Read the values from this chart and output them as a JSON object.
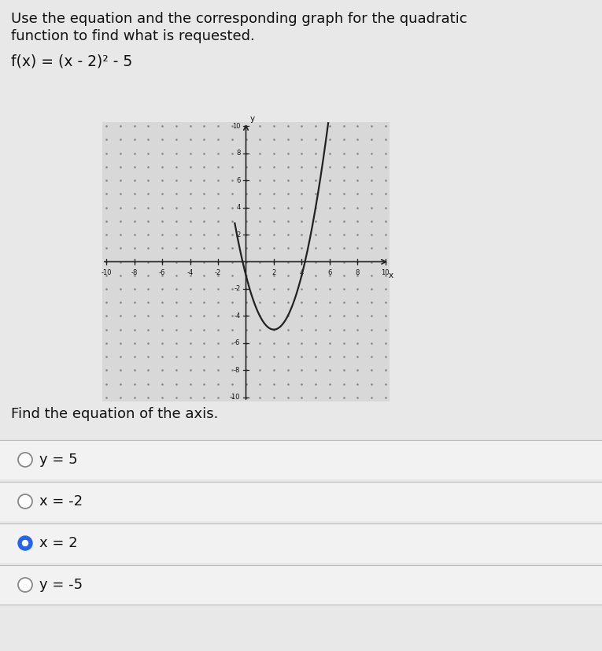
{
  "header_line1": "Use the equation and the corresponding graph for the quadratic",
  "header_line2": "function to find what is requested.",
  "equation_label": "f(x) = (x - 2)² - 5",
  "question": "Find the equation of the axis.",
  "choices": [
    "y = 5",
    "x = -2",
    "x = 2",
    "y = -5"
  ],
  "correct_index": 2,
  "background_color": "#e8e8e8",
  "graph_bg": "#d8d8d8",
  "dot_color": "#888888",
  "curve_color": "#222222",
  "axis_color": "#222222",
  "xmin": -10,
  "xmax": 10,
  "ymin": -10,
  "ymax": 10,
  "xticks": [
    -10,
    -8,
    -6,
    -4,
    -2,
    2,
    4,
    6,
    8,
    10
  ],
  "yticks": [
    -10,
    -8,
    -6,
    -4,
    -2,
    2,
    4,
    6,
    8,
    10
  ],
  "selected_color": "#2563eb",
  "divider_color": "#bbbbbb",
  "choice_bg": "#f0f0f0",
  "text_color": "#111111",
  "tick_fontsize": 6.0,
  "header_fontsize": 13.0,
  "eq_fontsize": 13.5,
  "choice_fontsize": 13.0
}
